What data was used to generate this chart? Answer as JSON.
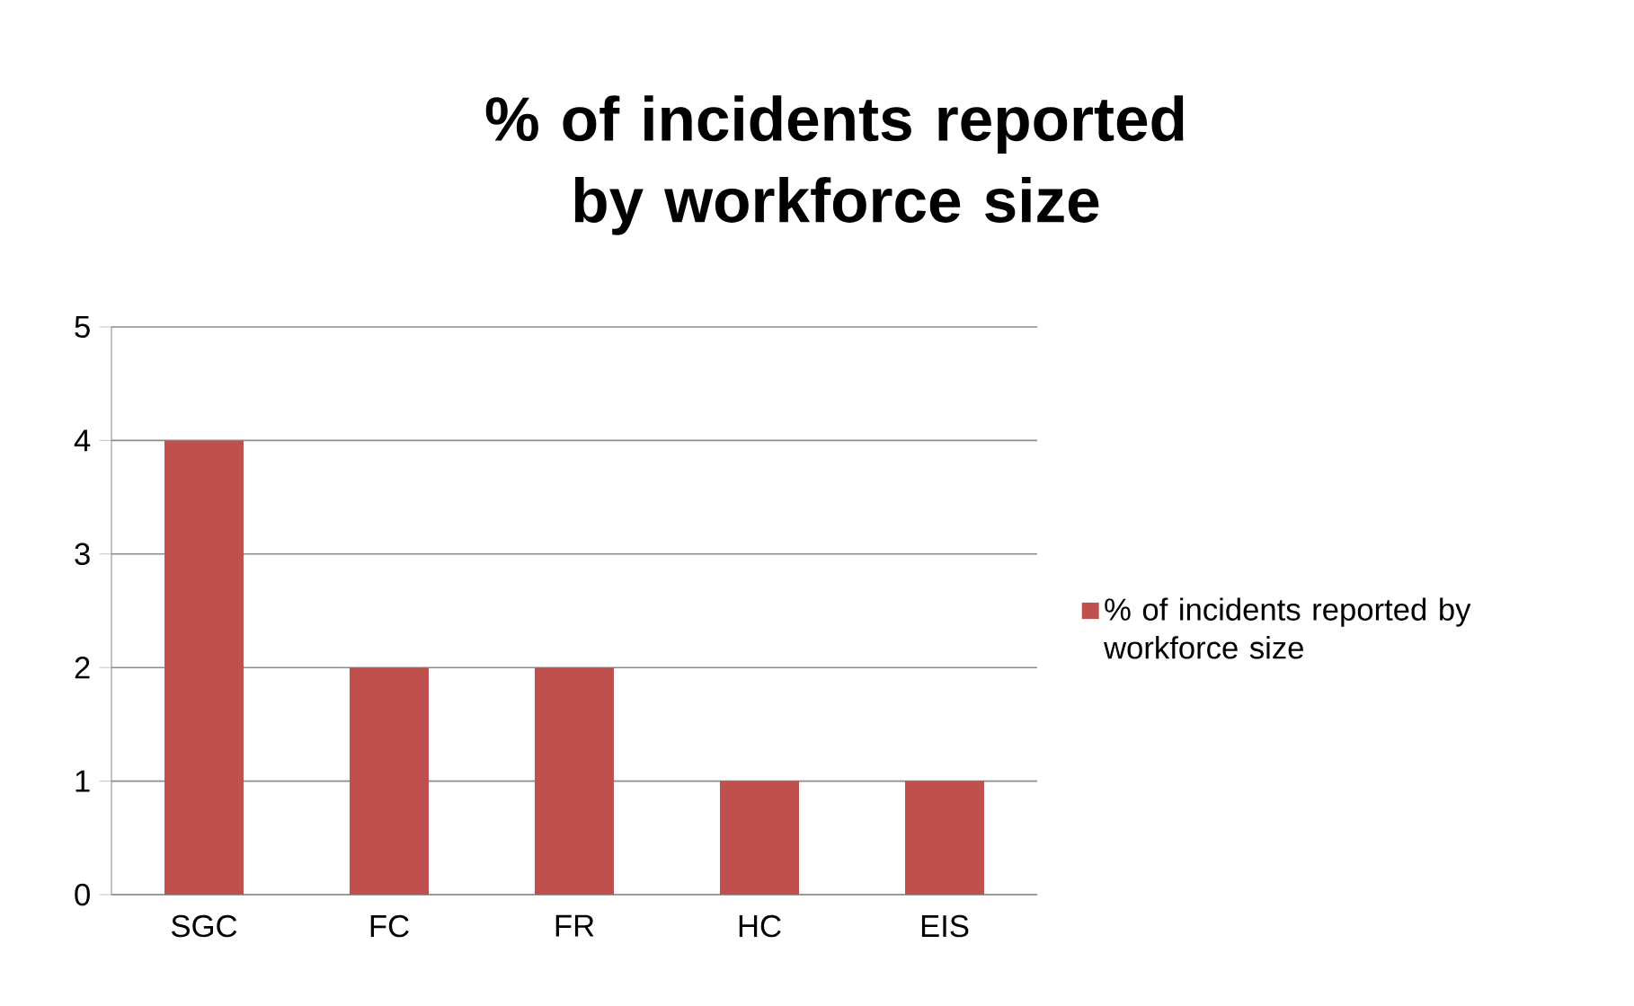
{
  "chart_data": {
    "type": "bar",
    "title": "% of incidents reported by workforce size",
    "categories": [
      "SGC",
      "FC",
      "FR",
      "HC",
      "EIS"
    ],
    "series": [
      {
        "name": "% of incidents reported by workforce size",
        "color": "#c0504d",
        "values": [
          4,
          2,
          2,
          1,
          1
        ]
      }
    ],
    "ylim": [
      0,
      5
    ],
    "yticks": [
      0,
      1,
      2,
      3,
      4,
      5
    ],
    "grid": "y",
    "legend": "right"
  }
}
